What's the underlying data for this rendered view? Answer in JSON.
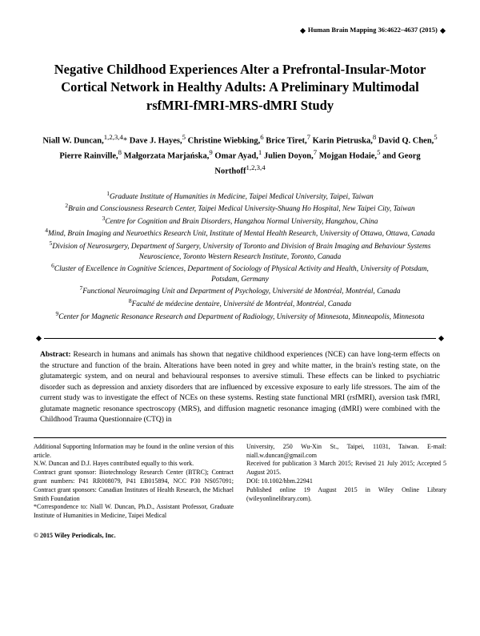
{
  "running_header": "Human Brain Mapping 36:4622–4637 (2015)",
  "title": "Negative Childhood Experiences Alter a Prefrontal-Insular-Motor Cortical Network in Healthy Adults: A Preliminary Multimodal rsfMRI-fMRI-MRS-dMRI Study",
  "authors_html": "<b>Niall W. Duncan,</b><sup>1,2,3,4</sup>* <b>Dave J. Hayes,</b><sup>5</sup> <b>Christine Wiebking,</b><sup>6</sup> <b>Brice Tiret,</b><sup>7</sup> <b>Karin Pietruska,</b><sup>8</sup> <b>David Q. Chen,</b><sup>5</sup> <b>Pierre Rainville,</b><sup>8</sup> <b>Małgorzata Marjańska,</b><sup>9</sup> <b>Omar Ayad,</b><sup>1</sup> <b>Julien Doyon,</b><sup>7</sup> <b>Mojgan Hodaie,</b><sup>5</sup> <b>and Georg Northoff</b><sup>1,2,3,4</sup>",
  "affiliations_html": "<sup>1</sup>Graduate Institute of Humanities in Medicine, Taipei Medical University, Taipei, Taiwan<br><sup>2</sup>Brain and Consciousness Research Center, Taipei Medical University-Shuang Ho Hospital, New Taipei City, Taiwan<br><sup>3</sup>Centre for Cognition and Brain Disorders, Hangzhou Normal University, Hangzhou, China<br><sup>4</sup>Mind, Brain Imaging and Neuroethics Research Unit, Institute of Mental Health Research, University of Ottawa, Ottawa, Canada<br><sup>5</sup>Division of Neurosurgery, Department of Surgery, University of Toronto and Division of Brain Imaging and Behaviour Systems Neuroscience, Toronto Western Research Institute, Toronto, Canada<br><sup>6</sup>Cluster of Excellence in Cognitive Sciences, Department of Sociology of Physical Activity and Health, University of Potsdam, Potsdam, Germany<br><sup>7</sup>Functional Neuroimaging Unit and Department of Psychology, Université de Montréal, Montréal, Canada<br><sup>8</sup>Faculté de médecine dentaire, Université de Montréal, Montréal, Canada<br><sup>9</sup>Center for Magnetic Resonance Research and Department of Radiology, University of Minnesota, Minneapolis, Minnesota",
  "abstract_label": "Abstract:",
  "abstract_text": "Research in humans and animals has shown that negative childhood experiences (NCE) can have long-term effects on the structure and function of the brain. Alterations have been noted in grey and white matter, in the brain's resting state, on the glutamatergic system, and on neural and behavioural responses to aversive stimuli. These effects can be linked to psychiatric disorder such as depression and anxiety disorders that are influenced by excessive exposure to early life stressors. The aim of the current study was to investigate the effect of NCEs on these systems. Resting state functional MRI (rsfMRI), aversion task fMRI, glutamate magnetic resonance spectroscopy (MRS), and diffusion magnetic resonance imaging (dMRI) were combined with the Childhood Trauma Questionnaire (CTQ) in",
  "footer_left": "Additional Supporting Information may be found in the online version of this article.\nN.W. Duncan and D.J. Hayes contributed equally to this work.\nContract grant sponsor: Biotechnology Research Center (BTRC); Contract grant numbers: P41 RR008079, P41 EB015894, NCC P30 NS057091; Contract grant sponsors: Canadian Institutes of Health Research, the Michael Smith Foundation\n*Correspondence to: Niall W. Duncan, Ph.D., Assistant Professor, Graduate Institute of Humanities in Medicine, Taipei Medical",
  "footer_right": "University, 250 Wu-Xin St., Taipei, 11031, Taiwan. E-mail: niall.w.duncan@gmail.com\nReceived for publication 3 March 2015; Revised 21 July 2015; Accepted 5 August 2015.\nDOI: 10.1002/hbm.22941\nPublished online 19 August 2015 in Wiley Online Library (wileyonlinelibrary.com).",
  "copyright": "© 2015 Wiley Periodicals, Inc."
}
